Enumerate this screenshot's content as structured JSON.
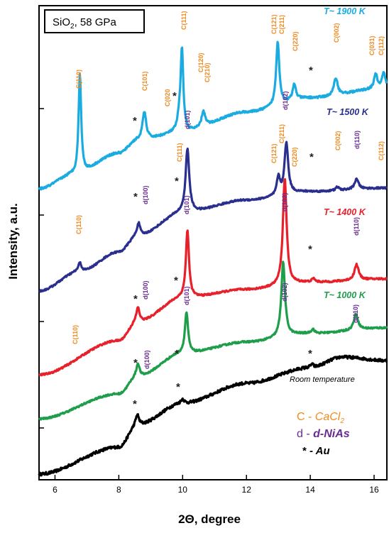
{
  "chart_data": {
    "type": "line",
    "title": "SiO₂, 58 GPa",
    "title_main": "SiO",
    "title_sub": "2",
    "title_rest": ", 58 GPa",
    "xlabel": "2Θ, degree",
    "ylabel": "Intensity, a.u.",
    "xlim": [
      5.5,
      16.4
    ],
    "x_ticks": [
      6,
      8,
      10,
      12,
      14,
      16
    ],
    "y_ticks_labeled": false,
    "grid": false,
    "series": [
      {
        "name": "Room temperature",
        "color": "#000000",
        "baseline": [
          [
            5.5,
            0
          ],
          [
            8.0,
            38
          ],
          [
            8.6,
            70
          ],
          [
            10.0,
            100
          ],
          [
            12.0,
            128
          ],
          [
            14.0,
            150
          ],
          [
            15.0,
            165
          ],
          [
            16.4,
            160
          ]
        ],
        "peaks": [
          [
            8.58,
            14,
            0.06
          ],
          [
            10.0,
            6,
            0.06
          ],
          [
            14.05,
            5,
            0.06
          ]
        ],
        "noise": 2,
        "offset": 0
      },
      {
        "name": "T~ 1000 K",
        "color": "#1e9e4a",
        "baseline": [
          [
            5.5,
            0
          ],
          [
            8.0,
            35
          ],
          [
            8.6,
            60
          ],
          [
            10.0,
            92
          ],
          [
            12.0,
            108
          ],
          [
            14.0,
            120
          ],
          [
            16.4,
            128
          ]
        ],
        "peaks": [
          [
            8.6,
            18,
            0.06
          ],
          [
            10.12,
            58,
            0.06
          ],
          [
            13.15,
            105,
            0.07
          ],
          [
            14.08,
            6,
            0.06
          ],
          [
            15.43,
            22,
            0.08
          ]
        ],
        "noise": 1.2,
        "offset": 78
      },
      {
        "name": "T~ 1400 K",
        "color": "#e8202a",
        "baseline": [
          [
            5.5,
            0
          ],
          [
            8.0,
            48
          ],
          [
            8.6,
            75
          ],
          [
            10.0,
            108
          ],
          [
            12.0,
            120
          ],
          [
            14.0,
            130
          ],
          [
            16.4,
            135
          ]
        ],
        "peaks": [
          [
            8.6,
            20,
            0.06
          ],
          [
            10.15,
            95,
            0.06
          ],
          [
            13.2,
            150,
            0.07
          ],
          [
            14.1,
            5,
            0.06
          ],
          [
            15.45,
            22,
            0.08
          ]
        ],
        "noise": 1.2,
        "offset": 140
      },
      {
        "name": "T~ 1500 K",
        "color": "#2a2e8e",
        "baseline": [
          [
            5.5,
            0
          ],
          [
            6.8,
            28
          ],
          [
            8.0,
            55
          ],
          [
            8.6,
            78
          ],
          [
            10.0,
            110
          ],
          [
            12.0,
            128
          ],
          [
            14.0,
            140
          ],
          [
            16.4,
            145
          ]
        ],
        "peaks": [
          [
            6.78,
            12,
            0.06
          ],
          [
            8.62,
            18,
            0.06
          ],
          [
            10.15,
            90,
            0.07
          ],
          [
            13.0,
            25,
            0.06
          ],
          [
            13.25,
            72,
            0.07
          ],
          [
            14.85,
            5,
            0.06
          ],
          [
            15.45,
            14,
            0.08
          ]
        ],
        "noise": 1.2,
        "offset": 258
      },
      {
        "name": "T~ 1900 K",
        "color": "#1aabe0",
        "baseline": [
          [
            5.5,
            0
          ],
          [
            6.6,
            20
          ],
          [
            8.0,
            50
          ],
          [
            8.6,
            68
          ],
          [
            10.0,
            80
          ],
          [
            12.0,
            108
          ],
          [
            14.0,
            128
          ],
          [
            16.4,
            142
          ]
        ],
        "peaks": [
          [
            6.78,
            140,
            0.05
          ],
          [
            8.8,
            40,
            0.07
          ],
          [
            9.9,
            18,
            0.07
          ],
          [
            9.98,
            112,
            0.05
          ],
          [
            10.65,
            22,
            0.07
          ],
          [
            12.98,
            90,
            0.06
          ],
          [
            13.5,
            22,
            0.06
          ],
          [
            14.8,
            25,
            0.07
          ],
          [
            16.05,
            20,
            0.06
          ],
          [
            16.3,
            22,
            0.06
          ]
        ],
        "noise": 1.5,
        "offset": 402
      }
    ],
    "series_labels": [
      {
        "text": "T~ 1900 K",
        "color": "#1aabe0"
      },
      {
        "text": "T~ 1500 K",
        "color": "#2a2e8e"
      },
      {
        "text": "T~ 1400 K",
        "color": "#e8202a"
      },
      {
        "text": "T~ 1000 K",
        "color": "#1e9e4a"
      },
      {
        "text": "Room temperature",
        "color": "#000000"
      }
    ],
    "peak_labels": {
      "c110_a": "C(110)",
      "c101_a": "C(101)",
      "c020": "C(020",
      "c111_a": "C(111)",
      "c120": "C(120)",
      "c210": "C(210)",
      "c121_a": "C(121)",
      "c211_a": "C(211)",
      "c220_a": "C(220)",
      "c002_a": "C(002)",
      "c031": "C(031)",
      "c112_a": "C(112)",
      "c111_b": "C(111)",
      "d101_a": "d(101)",
      "c121_b": "C(121)",
      "c211_b": "C(211)",
      "d102_a": "d(102)",
      "c220_b": "C(220)",
      "c002_b": "C(002)",
      "d110_a": "d(110)",
      "c112_b": "C(112)",
      "d100_a": "d(100)",
      "c110_b": "C(110)",
      "d101_b": "d(101)",
      "d102_b": "d(102)",
      "d110_b": "d(110)",
      "d100_b": "d(100)",
      "c110_c": "C(110)",
      "d101_c": "d(101)",
      "d102_c": "d(102)",
      "d110_c": "d(110)",
      "d100_c": "d(100)"
    },
    "legend": {
      "c_key": "C",
      "c_dash": " - ",
      "c_name": "CaCl",
      "c_sub": "2",
      "d_key": "d",
      "d_dash": " - ",
      "d_name": "d-NiAs",
      "star_key": "*",
      "star_name": " - Au",
      "c_color": "#f28a1e",
      "d_color": "#6a2c91"
    },
    "star_symbol": "*"
  }
}
